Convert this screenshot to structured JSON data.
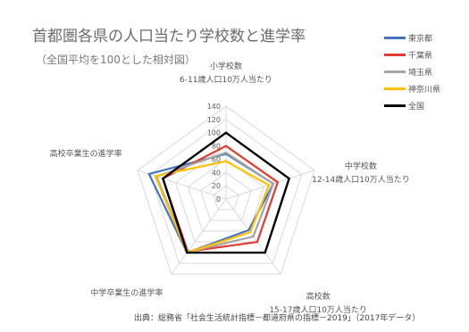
{
  "chart_data": {
    "type": "radar",
    "title": "首都圏各県の人口当たり学校数と進学率",
    "subtitle": "（全国平均を100とした相対図）",
    "source": "出典：総務省「社会生活統計指標－都道府県の指標－2019」（2017年データ）",
    "axes": [
      {
        "lines": [
          "小学校数",
          "6-11歳人口10万人当たり"
        ]
      },
      {
        "lines": [
          "中学校数",
          "12-14歳人口10万人当たり"
        ]
      },
      {
        "lines": [
          "高校数",
          "15-17歳人口10万人当たり"
        ]
      },
      {
        "lines": [
          "中学卒業生の進学率"
        ]
      },
      {
        "lines": [
          "高校卒業生の進学率"
        ]
      }
    ],
    "r_ticks": [
      "0",
      "20",
      "40",
      "60",
      "80",
      "100",
      "120",
      "140"
    ],
    "rlim": [
      0,
      140
    ],
    "series": [
      {
        "name": "東京都",
        "color": "#4472c4",
        "values": [
          68,
          75,
          58,
          100,
          122
        ]
      },
      {
        "name": "千葉県",
        "color": "#e03c31",
        "values": [
          80,
          82,
          80,
          98,
          100
        ]
      },
      {
        "name": "埼玉県",
        "color": "#a5a5a5",
        "values": [
          70,
          75,
          70,
          99,
          110
        ]
      },
      {
        "name": "神奈川県",
        "color": "#ffc000",
        "values": [
          57,
          68,
          62,
          100,
          112
        ]
      },
      {
        "name": "全国",
        "color": "#000000",
        "values": [
          100,
          100,
          100,
          100,
          100
        ]
      }
    ],
    "grid": true,
    "legend": "top-right"
  }
}
